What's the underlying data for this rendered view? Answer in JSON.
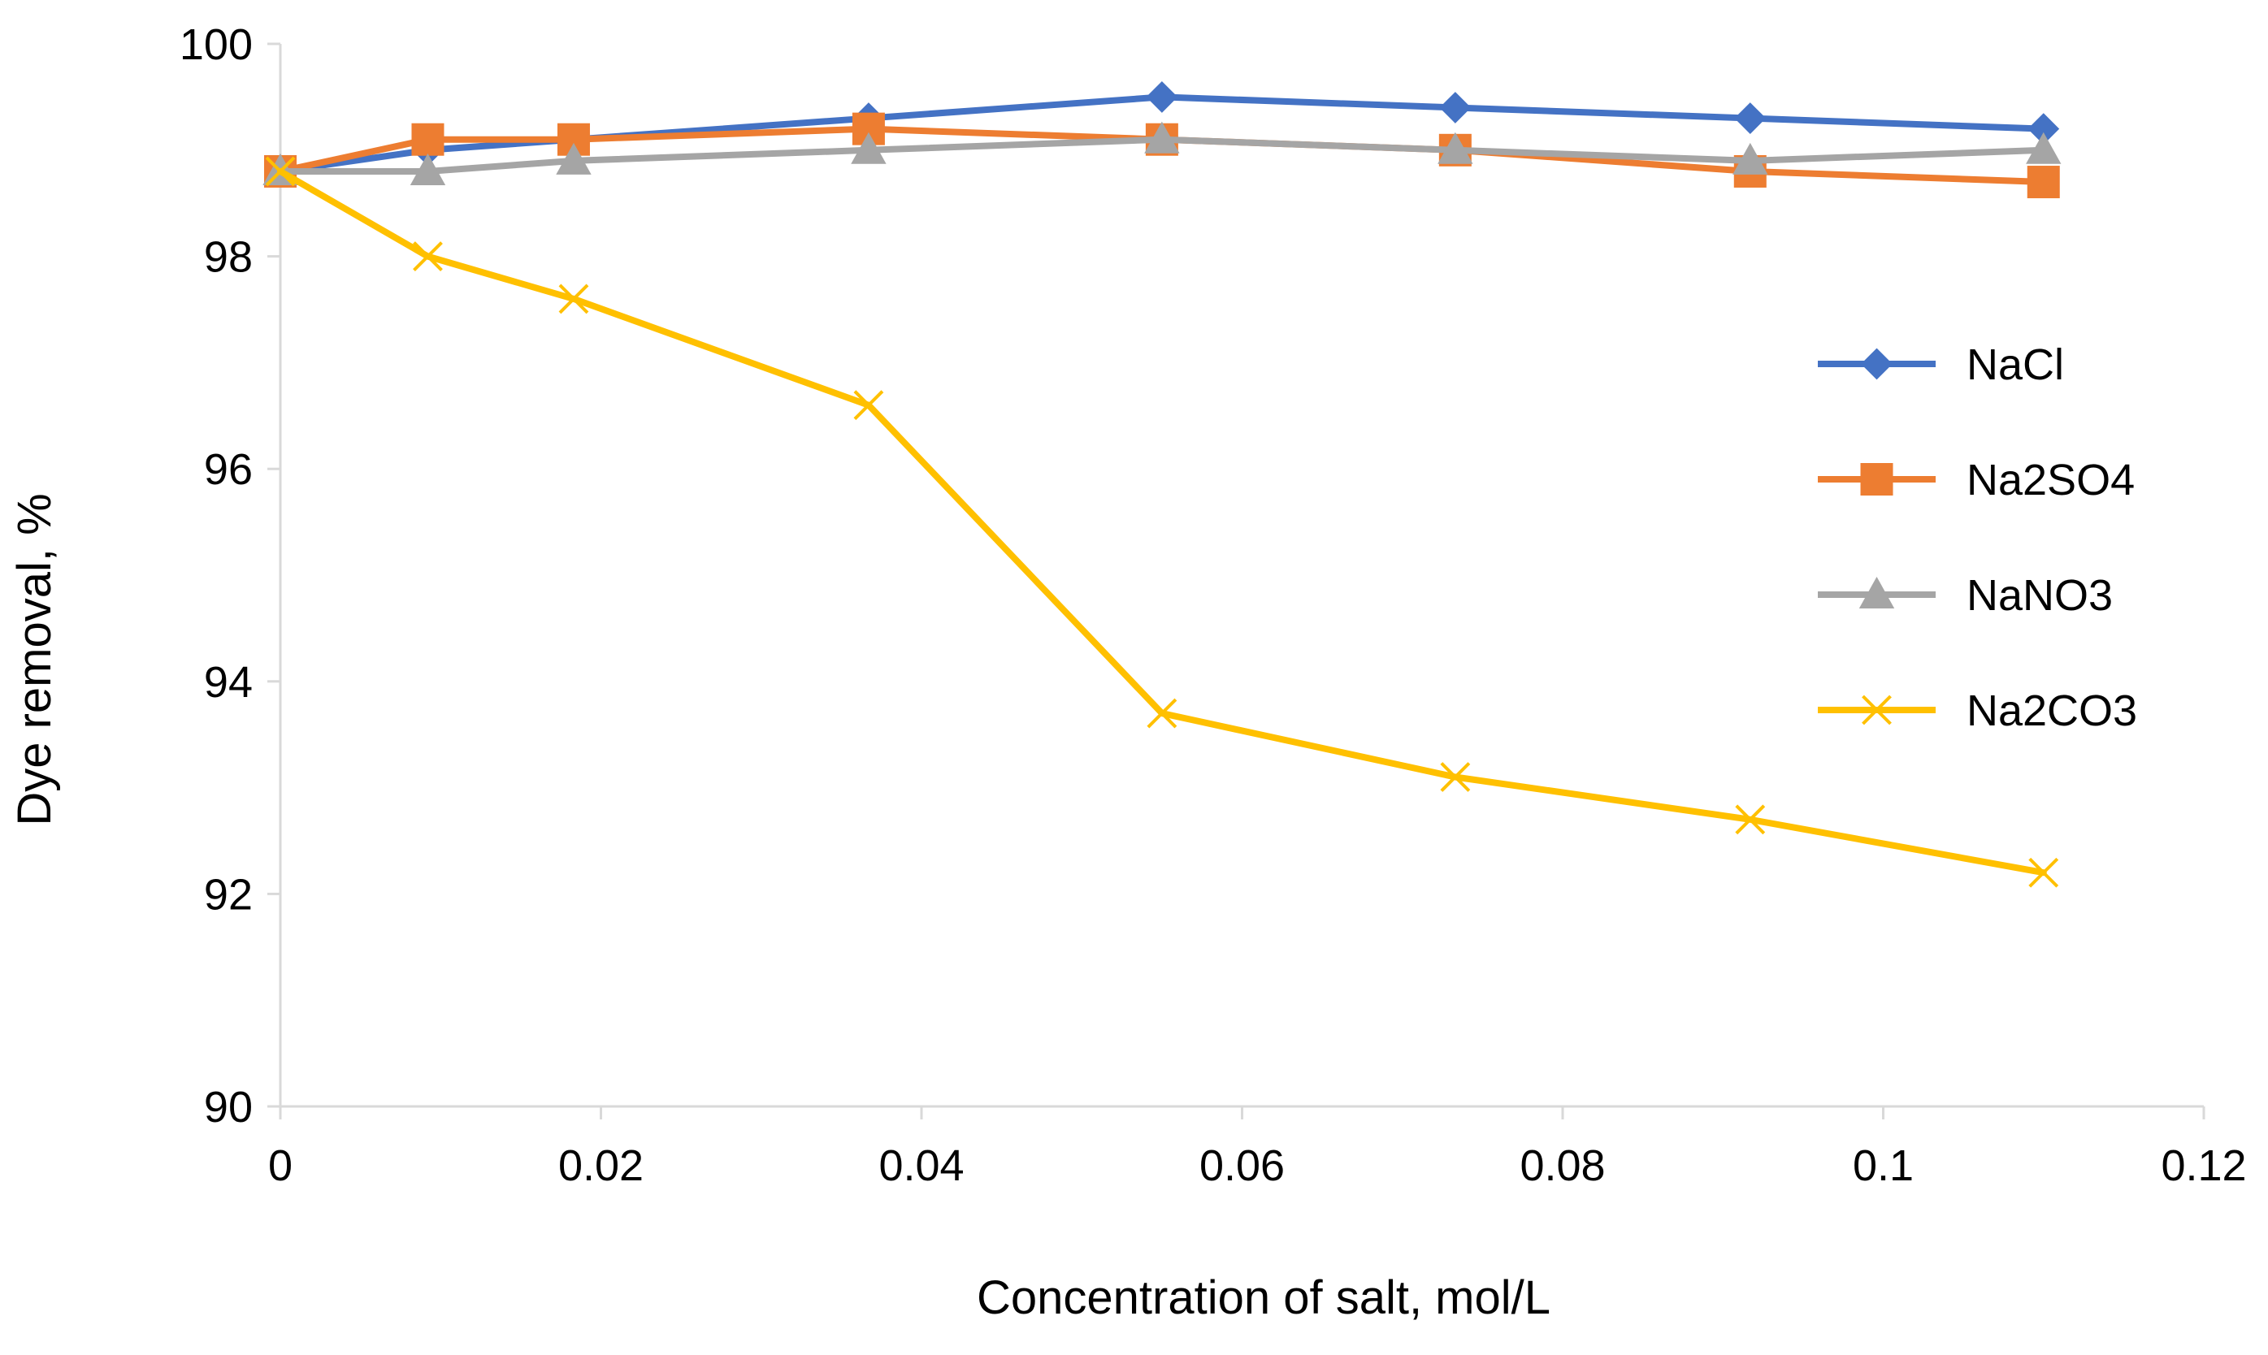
{
  "chart_data": {
    "type": "line",
    "title": "",
    "xlabel": "Concentration of salt, mol/L",
    "ylabel": "Dye removal, %",
    "xlim": [
      0,
      0.12
    ],
    "ylim": [
      90,
      100
    ],
    "x_ticks": [
      0,
      0.02,
      0.04,
      0.06,
      0.08,
      0.1,
      0.12
    ],
    "x_tick_labels": [
      "0",
      "0.02",
      "0.04",
      "0.06",
      "0.08",
      "0.1",
      "0.12"
    ],
    "y_ticks": [
      90,
      92,
      94,
      96,
      98,
      100
    ],
    "y_tick_labels": [
      "90",
      "92",
      "94",
      "96",
      "98",
      "100"
    ],
    "grid": false,
    "legend_position": "right",
    "x": [
      0,
      0.0092,
      0.0183,
      0.0367,
      0.055,
      0.0733,
      0.0917,
      0.11
    ],
    "series": [
      {
        "name": "NaCl",
        "color": "#4472C4",
        "marker": "diamond",
        "values": [
          98.8,
          99.0,
          99.1,
          99.3,
          99.5,
          99.4,
          99.3,
          99.2
        ]
      },
      {
        "name": "Na2SO4",
        "color": "#ED7D31",
        "marker": "square",
        "values": [
          98.8,
          99.1,
          99.1,
          99.2,
          99.1,
          99.0,
          98.8,
          98.7
        ]
      },
      {
        "name": "NaNO3",
        "color": "#A5A5A5",
        "marker": "triangle",
        "values": [
          98.8,
          98.8,
          98.9,
          99.0,
          99.1,
          99.0,
          98.9,
          99.0
        ]
      },
      {
        "name": "Na2CO3",
        "color": "#FFC000",
        "marker": "x",
        "values": [
          98.8,
          98.0,
          97.6,
          96.6,
          93.7,
          93.1,
          92.7,
          92.2
        ]
      }
    ]
  }
}
